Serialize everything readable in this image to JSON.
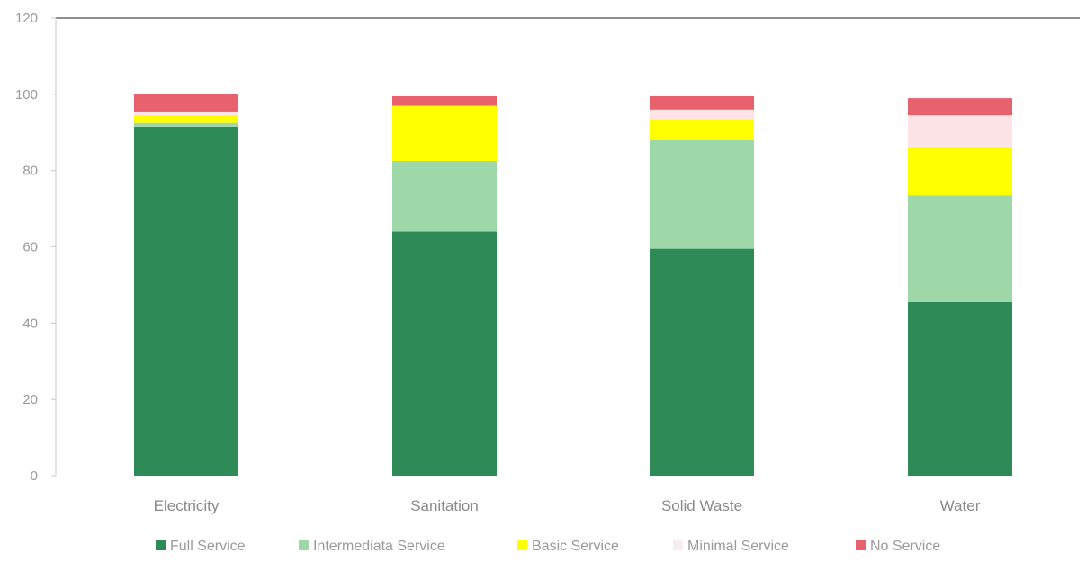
{
  "chart_data": {
    "type": "bar",
    "stacked": true,
    "categories": [
      "Electricity",
      "Sanitation",
      "Solid Waste",
      "Water"
    ],
    "series": [
      {
        "name": "Full Service",
        "color": "#2e8b57",
        "values": [
          91.5,
          64,
          59.5,
          45.5
        ]
      },
      {
        "name": "Intermediata Service",
        "color": "#9ed8a8",
        "values": [
          1,
          18.5,
          28.5,
          28
        ]
      },
      {
        "name": "Basic Service",
        "color": "#ffff00",
        "values": [
          2,
          14.5,
          5.5,
          12.5
        ]
      },
      {
        "name": "Minimal Service",
        "color": "#fbe3e6",
        "values": [
          1,
          0,
          2.5,
          8.5
        ]
      },
      {
        "name": "No Service",
        "color": "#e8626e",
        "values": [
          4.5,
          2.5,
          3.5,
          4.5
        ]
      }
    ],
    "ylim": [
      0,
      120
    ],
    "yticks": [
      "0",
      "20",
      "40",
      "60",
      "80",
      "100",
      "120"
    ],
    "title": "",
    "xlabel": "",
    "ylabel": "",
    "grid": false,
    "legend": "bottom"
  }
}
